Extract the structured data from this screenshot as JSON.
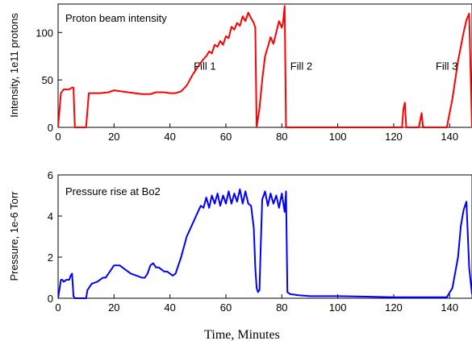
{
  "chart_data": [
    {
      "type": "line",
      "title": "Proton beam intensity",
      "ylabel": "Intensity, 1e11 protons",
      "xlabel": "",
      "xlim": [
        0,
        148
      ],
      "ylim": [
        0,
        130
      ],
      "xticks": [
        0,
        20,
        40,
        60,
        80,
        100,
        120,
        140
      ],
      "yticks": [
        0,
        50,
        100
      ],
      "grid": false,
      "series": [
        {
          "color": "#ff0000",
          "x": [
            0,
            1,
            2,
            4,
            5,
            5.5,
            6,
            10,
            11,
            12,
            15,
            18,
            20,
            25,
            30,
            33,
            35,
            38,
            40,
            42,
            44,
            46,
            48,
            50,
            52,
            53,
            54,
            55,
            56,
            57,
            58,
            59,
            60,
            61,
            62,
            63,
            64,
            65,
            66,
            67,
            68,
            69,
            70,
            70.5,
            71,
            72,
            73,
            74,
            75,
            76,
            77,
            78,
            79,
            80,
            80.5,
            81,
            81.5,
            82,
            100,
            123,
            123.5,
            124,
            124.5,
            129,
            130,
            130.5,
            131,
            139,
            141,
            143,
            145,
            146,
            147,
            148
          ],
          "y": [
            0,
            36,
            40,
            40,
            42,
            42,
            0,
            0,
            36,
            36,
            36,
            37,
            39,
            37,
            35,
            35,
            37,
            37,
            36,
            36,
            38,
            44,
            55,
            64,
            72,
            75,
            80,
            78,
            87,
            85,
            91,
            87,
            96,
            94,
            106,
            103,
            110,
            107,
            117,
            112,
            121,
            115,
            110,
            105,
            0,
            20,
            50,
            75,
            85,
            95,
            88,
            100,
            112,
            105,
            112,
            128,
            0,
            0,
            0,
            0,
            20,
            26,
            0,
            0,
            15,
            0,
            0,
            0,
            30,
            70,
            100,
            113,
            120,
            0
          ]
        }
      ],
      "annotations": [
        {
          "text": "Fill 1",
          "x": 48.5,
          "y": 65
        },
        {
          "text": "Fill 2",
          "x": 83,
          "y": 65
        },
        {
          "text": "Fill 3",
          "x": 135,
          "y": 65
        }
      ]
    },
    {
      "type": "line",
      "title": "Pressure rise at Bo2",
      "ylabel": "Pressure, 1e-6 Torr",
      "xlabel": "Time, Minutes",
      "xlim": [
        0,
        148
      ],
      "ylim": [
        0,
        6
      ],
      "xticks": [
        0,
        20,
        40,
        60,
        80,
        100,
        120,
        140
      ],
      "yticks": [
        0,
        2,
        4,
        6
      ],
      "grid": false,
      "series": [
        {
          "color": "#0000ff",
          "x": [
            0,
            1,
            1.5,
            2,
            3,
            4,
            4.5,
            5,
            5.5,
            6,
            10,
            10.5,
            11,
            12,
            14,
            15,
            16,
            17,
            18,
            19,
            20,
            22,
            24,
            26,
            28,
            30,
            31,
            32,
            33,
            34,
            35,
            36,
            38,
            39,
            40,
            41,
            42,
            44,
            46,
            48,
            50,
            51,
            52,
            53,
            54,
            55,
            56,
            57,
            58,
            59,
            60,
            61,
            62,
            63,
            64,
            65,
            66,
            67,
            68,
            69,
            70,
            70.5,
            71,
            71.5,
            72,
            72.5,
            73,
            74,
            75,
            76,
            77,
            78,
            79,
            80,
            81,
            81.5,
            82,
            83,
            86,
            90,
            100,
            110,
            120,
            130,
            139,
            141,
            143,
            144,
            145,
            146,
            147,
            148
          ],
          "y": [
            0,
            0.9,
            0.9,
            0.8,
            0.9,
            0.9,
            1.1,
            1.2,
            0.1,
            0,
            0,
            0.4,
            0.5,
            0.7,
            0.8,
            0.9,
            1.0,
            1.0,
            1.2,
            1.4,
            1.6,
            1.6,
            1.4,
            1.2,
            1.1,
            1.0,
            1.0,
            1.2,
            1.6,
            1.7,
            1.5,
            1.5,
            1.3,
            1.3,
            1.2,
            1.1,
            1.2,
            2.0,
            3.0,
            3.6,
            4.2,
            4.5,
            4.4,
            4.9,
            4.4,
            5.0,
            4.6,
            5.1,
            4.5,
            5.0,
            4.6,
            5.2,
            4.6,
            5.1,
            4.7,
            5.3,
            4.6,
            5.2,
            4.6,
            4.5,
            3.4,
            1.5,
            0.5,
            0.3,
            0.4,
            2.7,
            4.8,
            5.2,
            4.5,
            5.1,
            4.6,
            5.0,
            4.4,
            5.1,
            4.2,
            5.2,
            0.3,
            0.2,
            0.15,
            0.1,
            0.1,
            0.08,
            0.05,
            0.05,
            0.05,
            0.5,
            2.0,
            3.5,
            4.3,
            4.7,
            1.5,
            0.2
          ]
        }
      ],
      "annotations": []
    }
  ]
}
